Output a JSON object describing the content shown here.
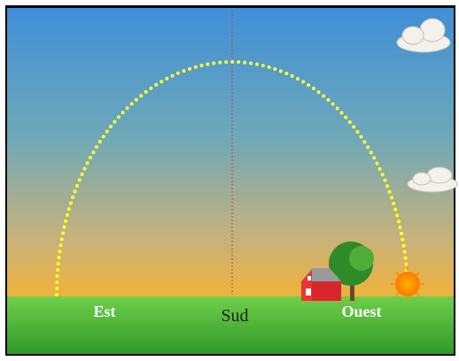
{
  "labels": {
    "east": "Est",
    "south": "Sud",
    "west": "Ouest"
  }
}
